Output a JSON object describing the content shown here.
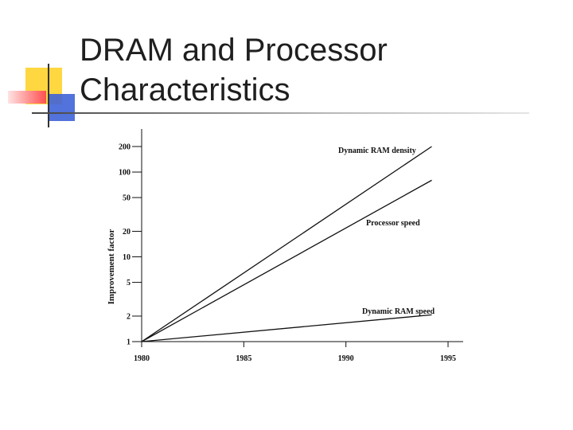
{
  "slide": {
    "title_line1": "DRAM and Processor",
    "title_line2": "Characteristics"
  },
  "colors": {
    "accent_yellow": "#ffd740",
    "accent_red": "#ff4f4f",
    "accent_blue": "#3f63d8",
    "rule": "#8a8a8a"
  },
  "chart_data": {
    "type": "line",
    "ylabel": "Improvement factor",
    "xlabel": "",
    "yscale": "log",
    "xlim": [
      1980,
      1995
    ],
    "ylim": [
      1,
      200
    ],
    "x_ticks": [
      "1980",
      "1985",
      "1990",
      "1995"
    ],
    "y_ticks": [
      "1",
      "2",
      "5",
      "10",
      "20",
      "50",
      "100",
      "200"
    ],
    "grid": false,
    "series": [
      {
        "name": "Dynamic RAM density",
        "x": [
          1980,
          1994.2
        ],
        "y": [
          1,
          200
        ]
      },
      {
        "name": "Processor speed",
        "x": [
          1980,
          1994.2
        ],
        "y": [
          1,
          80
        ]
      },
      {
        "name": "Dynamic RAM speed",
        "x": [
          1980,
          1994.2
        ],
        "y": [
          1,
          2.07
        ]
      }
    ]
  }
}
